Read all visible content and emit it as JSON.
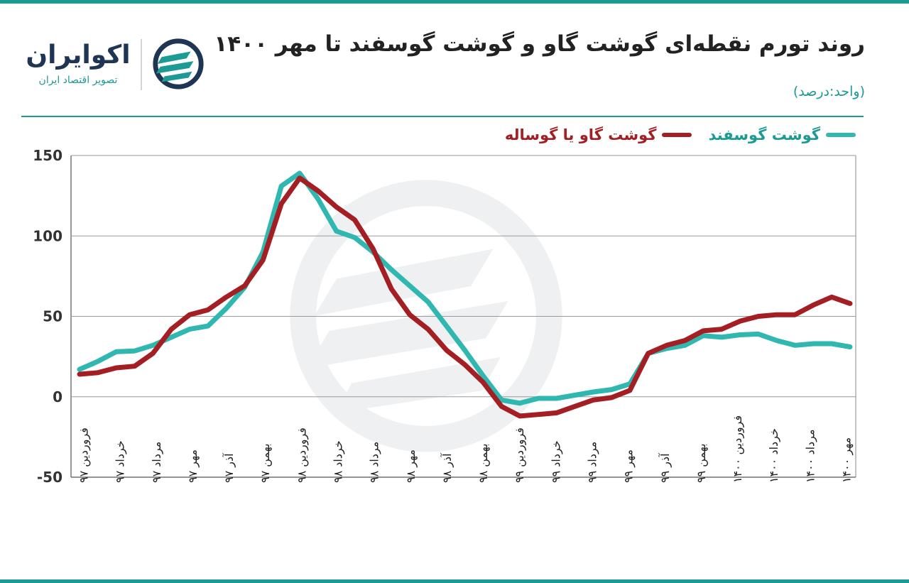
{
  "header": {
    "title": "روند تورم نقطه‌ای گوشت گاو و گوشت گوسفند تا مهر ۱۴۰۰",
    "unit": "(واحد:درصد)"
  },
  "brand": {
    "name": "اکوایران",
    "tagline": "تصویر اقتصاد ایران",
    "logo_icon": "ecoiran-logo-icon",
    "colors": {
      "teal": "#1c9a94",
      "navy": "#1e3553"
    }
  },
  "chart_data": {
    "type": "line",
    "title": "روند تورم نقطه‌ای گوشت گاو و گوشت گوسفند تا مهر ۱۴۰۰",
    "ylabel": "",
    "xlabel": "",
    "ylim": [
      -50,
      150
    ],
    "yticks": [
      {
        "value": 150,
        "label": "150"
      },
      {
        "value": 100,
        "label": "100"
      },
      {
        "value": 50,
        "label": "50"
      },
      {
        "value": 0,
        "label": "0"
      },
      {
        "value": -50,
        "label": "-50"
      }
    ],
    "grid": true,
    "legend_position": "top-right",
    "x_tick_labels": [
      "فروردین ۹۷",
      "خرداد ۹۷",
      "مرداد ۹۷",
      "مهر ۹۷",
      "آذر ۹۷",
      "بهمن ۹۷",
      "فروردین ۹۸",
      "خرداد ۹۸",
      "مرداد ۹۸",
      "مهر ۹۸",
      "آذر ۹۸",
      "بهمن ۹۸",
      "فروردین ۹۹",
      "خرداد ۹۹",
      "مرداد ۹۹",
      "مهر ۹۹",
      "آذر ۹۹",
      "بهمن ۹۹",
      "فروردین ۱۴۰۰",
      "خرداد ۱۴۰۰",
      "مرداد ۱۴۰۰",
      "مهر ۱۴۰۰"
    ],
    "series": [
      {
        "name": "گوشت گوسفند",
        "color": "#2fb7b0",
        "values": [
          17,
          22,
          28,
          28.5,
          32,
          37,
          42,
          44,
          55,
          68,
          90,
          131,
          139,
          123,
          103,
          99,
          90,
          79,
          69,
          59,
          44,
          29,
          13,
          -2,
          -4,
          -1,
          -1,
          1,
          3,
          4.5,
          8,
          27,
          30,
          32,
          38,
          37,
          38.5,
          39,
          35,
          32,
          33,
          33,
          31
        ]
      },
      {
        "name": "گوشت گاو یا گوساله",
        "color": "#a31f24",
        "values": [
          14,
          15,
          18,
          19,
          27,
          42,
          51,
          54,
          62,
          69,
          85,
          120,
          136,
          128,
          118,
          110,
          92,
          67,
          51,
          42,
          29,
          20,
          9,
          -6,
          -12,
          -11,
          -10,
          -6,
          -2,
          -0.5,
          4,
          27,
          32,
          35,
          41,
          42,
          47,
          50,
          51,
          51,
          57,
          62,
          58
        ]
      }
    ]
  }
}
